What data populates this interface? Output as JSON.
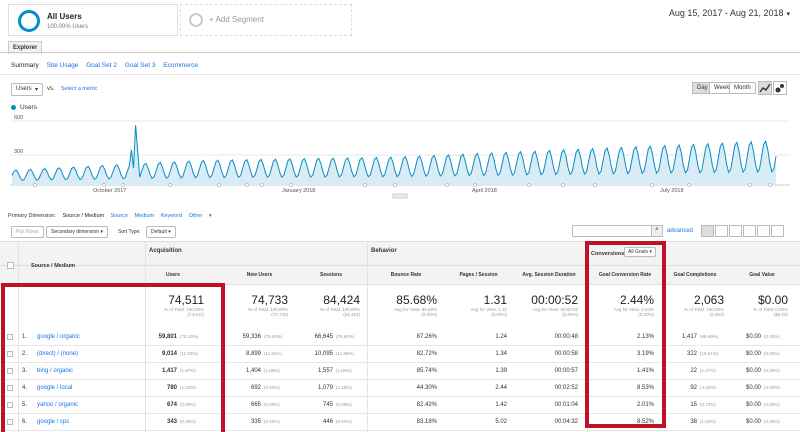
{
  "segments": {
    "active_title": "All Users",
    "active_sub": "100.00% Users",
    "add_label": "+ Add Segment"
  },
  "date_range": "Aug 15, 2017 - Aug 21, 2018",
  "tab": "Explorer",
  "subnav": [
    "Summary",
    "Site Usage",
    "Goal Set 2",
    "Goal Set 3",
    "Ecommerce"
  ],
  "metric_select": "Users",
  "vs_label": "vs.",
  "select_metric": "Select a metric",
  "granularity": [
    "Day",
    "Week",
    "Month"
  ],
  "legend_label": "Users",
  "chart_data": {
    "type": "line",
    "y_ticks": [
      "600",
      "300"
    ],
    "x_ticks": [
      "October 2017",
      "January 2018",
      "April 2018",
      "July 2018"
    ],
    "ylim": [
      0,
      650
    ],
    "series": [
      {
        "name": "Users",
        "color": "#058dc7"
      }
    ]
  },
  "primary_dim": {
    "label": "Primary Dimension:",
    "current": "Source / Medium",
    "options": [
      "Source",
      "Medium",
      "Keyword",
      "Other"
    ]
  },
  "toolbar": {
    "plot_rows": "Plot Rows",
    "secondary": "Secondary dimension",
    "sort_type_label": "Sort Type:",
    "sort_type": "Default",
    "advanced": "advanced"
  },
  "groups": {
    "acquisition": "Acquisition",
    "behavior": "Behavior",
    "conversions": "Conversions",
    "goal_select": "All Goals"
  },
  "columns": [
    "Source / Medium",
    "Users",
    "New Users",
    "Sessions",
    "Bounce Rate",
    "Pages / Session",
    "Avg. Session Duration",
    "Goal Conversion Rate",
    "Goal Completions",
    "Goal Value"
  ],
  "totals": [
    {
      "big": "74,511",
      "sub1": "% of Total: 100.00%",
      "sub2": "(74,511)"
    },
    {
      "big": "74,733",
      "sub1": "% of Total: 100.00%",
      "sub2": "(74,733)"
    },
    {
      "big": "84,424",
      "sub1": "% of Total: 100.00%",
      "sub2": "(84,424)"
    },
    {
      "big": "85.68%",
      "sub1": "Avg for View: 85.68%",
      "sub2": "(0.00%)"
    },
    {
      "big": "1.31",
      "sub1": "Avg for View: 1.31",
      "sub2": "(0.00%)"
    },
    {
      "big": "00:00:52",
      "sub1": "Avg for View: 00:00:52",
      "sub2": "(0.00%)"
    },
    {
      "big": "2.44%",
      "sub1": "Avg for View: 2.44%",
      "sub2": "(0.00%)"
    },
    {
      "big": "2,063",
      "sub1": "% of Total: 100.00%",
      "sub2": "(2,063)"
    },
    {
      "big": "$0.00",
      "sub1": "% of Total: 0.00%",
      "sub2": "($0.00)"
    }
  ],
  "rows": [
    {
      "idx": "1.",
      "name": "google / organic",
      "users": "59,801",
      "users_pct": "(79.13%)",
      "new": "59,336",
      "new_pct": "(79.40%)",
      "sess": "66,645",
      "sess_pct": "(78.94%)",
      "br": "87.26%",
      "pps": "1.24",
      "dur": "00:00:48",
      "gcr": "2.13%",
      "gc": "1,417",
      "gc_pct": "(68.69%)",
      "gv": "$0.00",
      "gv_pct": "(0.00%)"
    },
    {
      "idx": "2.",
      "name": "(direct) / (none)",
      "users": "9,014",
      "users_pct": "(11.93%)",
      "new": "8,899",
      "new_pct": "(11.91%)",
      "sess": "10,095",
      "sess_pct": "(11.96%)",
      "br": "82.72%",
      "pps": "1.34",
      "dur": "00:00:58",
      "gcr": "3.19%",
      "gc": "322",
      "gc_pct": "(15.61%)",
      "gv": "$0.00",
      "gv_pct": "(0.00%)"
    },
    {
      "idx": "3.",
      "name": "bing / organic",
      "users": "1,417",
      "users_pct": "(1.87%)",
      "new": "1,404",
      "new_pct": "(1.88%)",
      "sess": "1,557",
      "sess_pct": "(1.84%)",
      "br": "85.74%",
      "pps": "1.39",
      "dur": "00:00:57",
      "gcr": "1.41%",
      "gc": "22",
      "gc_pct": "(1.07%)",
      "gv": "$0.00",
      "gv_pct": "(0.00%)"
    },
    {
      "idx": "4.",
      "name": "google / local",
      "users": "780",
      "users_pct": "(1.03%)",
      "new": "692",
      "new_pct": "(0.93%)",
      "sess": "1,079",
      "sess_pct": "(1.28%)",
      "br": "44.30%",
      "pps": "2.44",
      "dur": "00:02:52",
      "gcr": "8.53%",
      "gc": "92",
      "gc_pct": "(4.46%)",
      "gv": "$0.00",
      "gv_pct": "(0.00%)"
    },
    {
      "idx": "5.",
      "name": "yahoo / organic",
      "users": "674",
      "users_pct": "(0.89%)",
      "new": "665",
      "new_pct": "(0.89%)",
      "sess": "745",
      "sess_pct": "(0.88%)",
      "br": "82.42%",
      "pps": "1.42",
      "dur": "00:01:04",
      "gcr": "2.01%",
      "gc": "15",
      "gc_pct": "(0.73%)",
      "gv": "$0.00",
      "gv_pct": "(0.00%)"
    },
    {
      "idx": "6.",
      "name": "google / cpc",
      "users": "343",
      "users_pct": "(0.45%)",
      "new": "335",
      "new_pct": "(0.45%)",
      "sess": "446",
      "sess_pct": "(0.53%)",
      "br": "83.18%",
      "pps": "5.02",
      "dur": "00:04:32",
      "gcr": "8.52%",
      "gc": "38",
      "gc_pct": "(1.84%)",
      "gv": "$0.00",
      "gv_pct": "(0.00%)"
    }
  ]
}
